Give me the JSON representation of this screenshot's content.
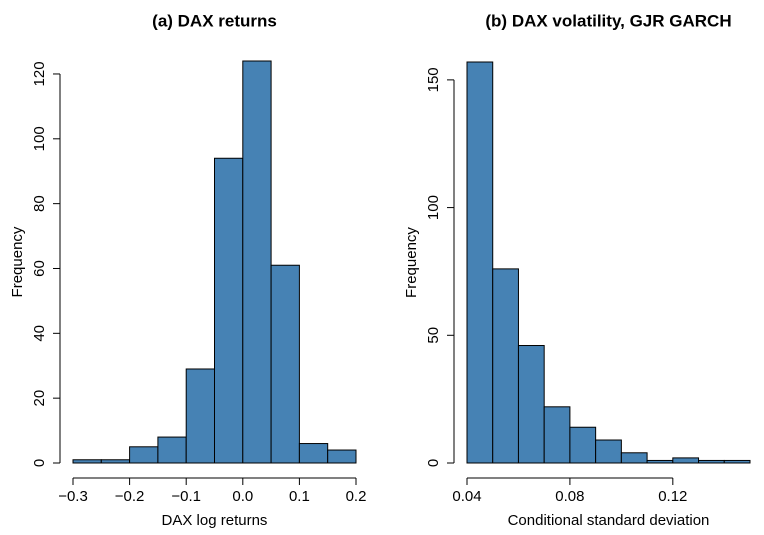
{
  "chart_data": [
    {
      "type": "histogram",
      "title": "(a) DAX returns",
      "x_label": "DAX log returns",
      "y_label": "Frequency",
      "bins": [
        -0.3,
        -0.25,
        -0.2,
        -0.15,
        -0.1,
        -0.05,
        0,
        0.05,
        0.1,
        0.15,
        0.2
      ],
      "counts": [
        1,
        1,
        5,
        8,
        29,
        94,
        124,
        61,
        6,
        4
      ],
      "color": "#4682b4",
      "xlim": [
        -0.3,
        0.2
      ],
      "ylim": [
        0,
        124
      ],
      "xticks": [
        {
          "value": -0.3,
          "label": "−0.3"
        },
        {
          "value": -0.2,
          "label": "−0.2"
        },
        {
          "value": -0.1,
          "label": "−0.1"
        },
        {
          "value": 0,
          "label": "0.0"
        },
        0.1,
        0.2
      ],
      "yticks": [
        0,
        20,
        40,
        60,
        80,
        100,
        120
      ]
    },
    {
      "type": "histogram",
      "title": "(b) DAX volatility, GJR GARCH",
      "x_label": "Conditional standard deviation",
      "y_label": "Frequency",
      "bins": [
        0.04,
        0.05,
        0.06,
        0.07,
        0.08,
        0.09,
        0.1,
        0.11,
        0.12,
        0.13,
        0.14,
        0.15
      ],
      "counts": [
        157,
        76,
        46,
        22,
        14,
        9,
        4,
        1,
        2,
        1,
        1
      ],
      "color": "#4682b4",
      "xlim": [
        0.04,
        0.15
      ],
      "ylim": [
        0,
        157
      ],
      "xticks": [
        0.04,
        0.08,
        0.12
      ],
      "yticks": [
        0,
        50,
        100,
        150
      ]
    }
  ]
}
